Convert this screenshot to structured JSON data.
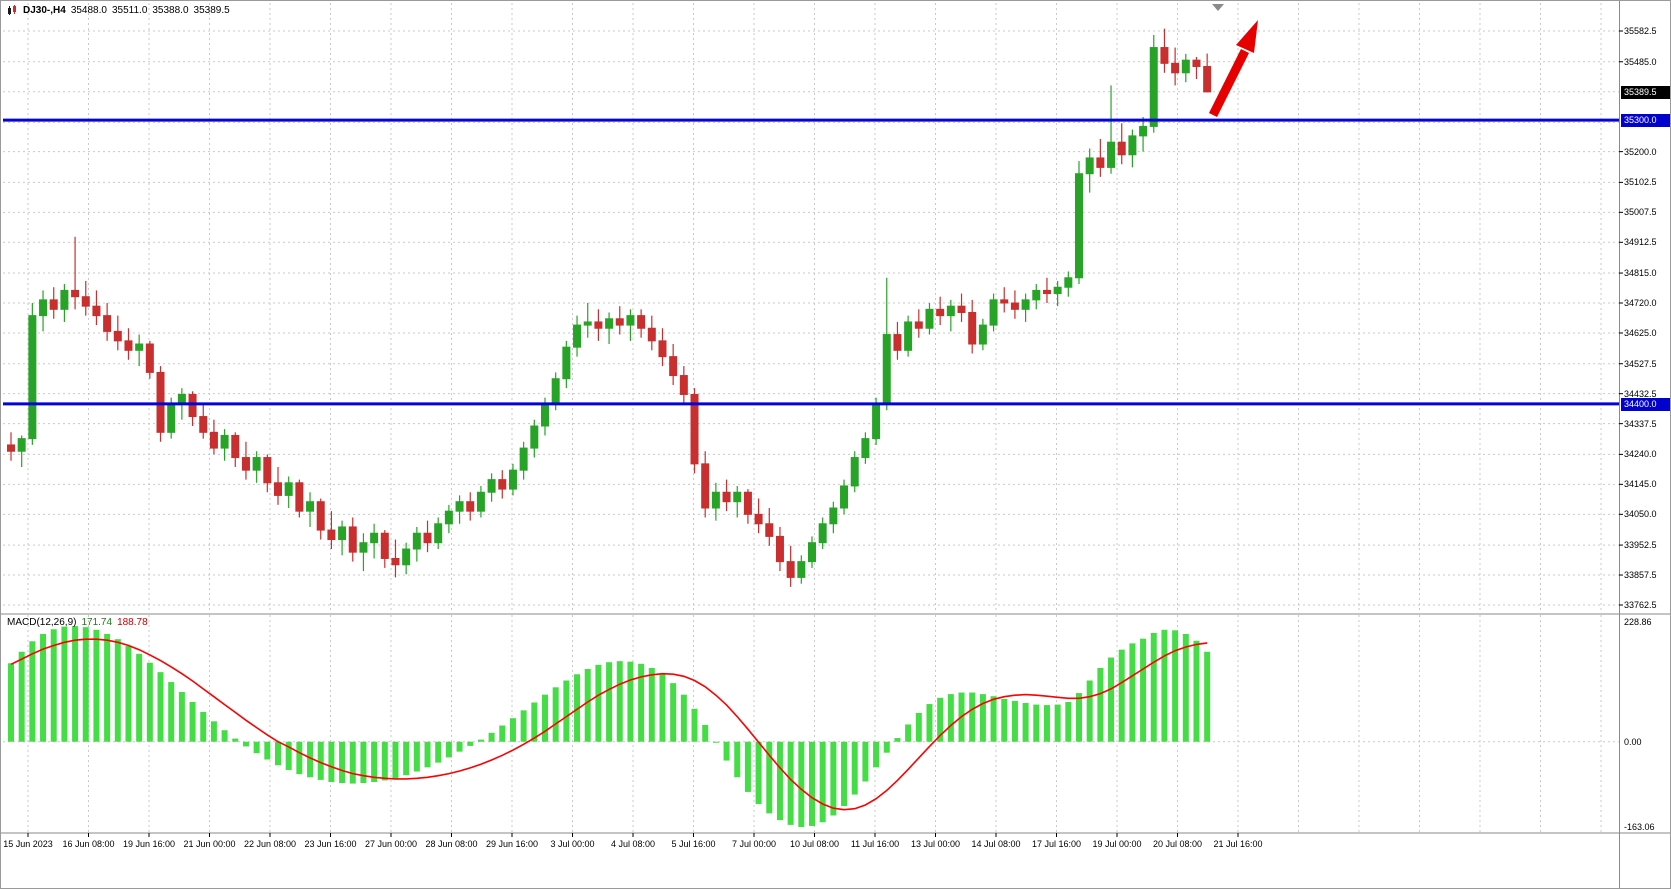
{
  "header": {
    "symbol_period": "DJ30-,H4",
    "open": "35488.0",
    "high": "35511.0",
    "low": "35388.0",
    "close": "35389.5"
  },
  "price_axis": {
    "labels": [
      {
        "price": 35582.5,
        "text": "35582.5"
      },
      {
        "price": 35485.0,
        "text": "35485.0"
      },
      {
        "price": 35200.0,
        "text": "35200.0"
      },
      {
        "price": 35102.5,
        "text": "35102.5"
      },
      {
        "price": 35007.5,
        "text": "35007.5"
      },
      {
        "price": 34912.5,
        "text": "34912.5"
      },
      {
        "price": 34815.0,
        "text": "34815.0"
      },
      {
        "price": 34720.0,
        "text": "34720.0"
      },
      {
        "price": 34625.0,
        "text": "34625.0"
      },
      {
        "price": 34527.5,
        "text": "34527.5"
      },
      {
        "price": 34432.5,
        "text": "34432.5"
      },
      {
        "price": 34337.5,
        "text": "34337.5"
      },
      {
        "price": 34240.0,
        "text": "34240.0"
      },
      {
        "price": 34145.0,
        "text": "34145.0"
      },
      {
        "price": 34050.0,
        "text": "34050.0"
      },
      {
        "price": 33952.5,
        "text": "33952.5"
      },
      {
        "price": 33857.5,
        "text": "33857.5"
      },
      {
        "price": 33762.5,
        "text": "33762.5"
      }
    ],
    "current_tag": {
      "price": 35389.5,
      "text": "35389.5",
      "bg": "#000000",
      "fg": "#ffffff"
    },
    "level_tags": [
      {
        "price": 35300.0,
        "text": "35300.0",
        "bg": "#0202cf",
        "fg": "#ffffff"
      },
      {
        "price": 34400.0,
        "text": "34400.0",
        "bg": "#0202cf",
        "fg": "#ffffff"
      }
    ]
  },
  "time_axis": {
    "labels": [
      "15 Jun 2023",
      "16 Jun 08:00",
      "19 Jun 16:00",
      "21 Jun 00:00",
      "22 Jun 08:00",
      "23 Jun 16:00",
      "27 Jun 00:00",
      "28 Jun 08:00",
      "29 Jun 16:00",
      "3 Jul 00:00",
      "4 Jul 08:00",
      "5 Jul 16:00",
      "7 Jul 00:00",
      "10 Jul 08:00",
      "11 Jul 16:00",
      "13 Jul 00:00",
      "14 Jul 08:00",
      "17 Jul 16:00",
      "19 Jul 00:00",
      "20 Jul 08:00",
      "21 Jul 16:00"
    ]
  },
  "macd_panel": {
    "label": "MACD(12,26,9)",
    "main_value": "171.74",
    "signal_value": "188.78",
    "scale_max": "228.86",
    "scale_zero": "0.00",
    "scale_min": "-163.06"
  },
  "colors": {
    "bull": "#27a427",
    "bear": "#c92f2f",
    "macd_hist": "#45dd45",
    "macd_signal": "#ff0000",
    "level_line": "#0404d8",
    "grid": "#c9c9c9",
    "axis_text": "#000000",
    "arrow": "#e60000",
    "background": "#ffffff"
  },
  "chart_data": {
    "type": "candlestick",
    "title": "DJ30-,H4",
    "symbol": "DJ30-",
    "timeframe": "H4",
    "ylim": [
      33762.5,
      35582.5
    ],
    "x_labels": [
      "15 Jun 2023",
      "16 Jun 08:00",
      "19 Jun 16:00",
      "21 Jun 00:00",
      "22 Jun 08:00",
      "23 Jun 16:00",
      "27 Jun 00:00",
      "28 Jun 08:00",
      "29 Jun 16:00",
      "3 Jul 00:00",
      "4 Jul 08:00",
      "5 Jul 16:00",
      "7 Jul 00:00",
      "10 Jul 08:00",
      "11 Jul 16:00",
      "13 Jul 00:00",
      "14 Jul 08:00",
      "17 Jul 16:00",
      "19 Jul 00:00",
      "20 Jul 08:00",
      "21 Jul 16:00"
    ],
    "price_gridlines": [
      35582.5,
      35485.0,
      35390.0,
      35292.5,
      35200.0,
      35102.5,
      35007.5,
      34912.5,
      34815.0,
      34720.0,
      34625.0,
      34527.5,
      34432.5,
      34337.5,
      34240.0,
      34145.0,
      34050.0,
      33952.5,
      33857.5,
      33762.5
    ],
    "horizontal_levels": [
      35300.0,
      34400.0
    ],
    "current_price": 35389.5,
    "candles": [
      [
        34270,
        34310,
        34220,
        34250
      ],
      [
        34250,
        34300,
        34200,
        34290
      ],
      [
        34290,
        34720,
        34270,
        34680
      ],
      [
        34680,
        34760,
        34630,
        34730
      ],
      [
        34730,
        34770,
        34670,
        34700
      ],
      [
        34700,
        34780,
        34660,
        34760
      ],
      [
        34760,
        34930,
        34700,
        34740
      ],
      [
        34740,
        34790,
        34680,
        34710
      ],
      [
        34710,
        34760,
        34650,
        34680
      ],
      [
        34680,
        34720,
        34600,
        34630
      ],
      [
        34630,
        34680,
        34570,
        34600
      ],
      [
        34600,
        34640,
        34540,
        34570
      ],
      [
        34570,
        34620,
        34520,
        34590
      ],
      [
        34590,
        34600,
        34480,
        34500
      ],
      [
        34500,
        34520,
        34280,
        34310
      ],
      [
        34310,
        34420,
        34290,
        34400
      ],
      [
        34400,
        34450,
        34350,
        34430
      ],
      [
        34430,
        34440,
        34330,
        34360
      ],
      [
        34360,
        34400,
        34290,
        34310
      ],
      [
        34310,
        34350,
        34240,
        34260
      ],
      [
        34260,
        34320,
        34220,
        34300
      ],
      [
        34300,
        34310,
        34200,
        34230
      ],
      [
        34230,
        34280,
        34160,
        34190
      ],
      [
        34190,
        34250,
        34150,
        34230
      ],
      [
        34230,
        34240,
        34120,
        34150
      ],
      [
        34150,
        34200,
        34080,
        34110
      ],
      [
        34110,
        34170,
        34070,
        34150
      ],
      [
        34150,
        34160,
        34040,
        34060
      ],
      [
        34060,
        34120,
        34010,
        34090
      ],
      [
        34090,
        34100,
        33970,
        34000
      ],
      [
        34000,
        34060,
        33940,
        33970
      ],
      [
        33970,
        34030,
        33920,
        34010
      ],
      [
        34010,
        34040,
        33900,
        33930
      ],
      [
        33930,
        33990,
        33870,
        33960
      ],
      [
        33960,
        34020,
        33910,
        33990
      ],
      [
        33990,
        34000,
        33880,
        33910
      ],
      [
        33910,
        33970,
        33850,
        33890
      ],
      [
        33890,
        33960,
        33860,
        33940
      ],
      [
        33940,
        34010,
        33900,
        33990
      ],
      [
        33990,
        34030,
        33930,
        33960
      ],
      [
        33960,
        34040,
        33940,
        34020
      ],
      [
        34020,
        34080,
        33990,
        34060
      ],
      [
        34060,
        34110,
        34020,
        34090
      ],
      [
        34090,
        34120,
        34030,
        34060
      ],
      [
        34060,
        34140,
        34040,
        34120
      ],
      [
        34120,
        34180,
        34090,
        34160
      ],
      [
        34160,
        34190,
        34100,
        34130
      ],
      [
        34130,
        34210,
        34110,
        34190
      ],
      [
        34190,
        34280,
        34160,
        34260
      ],
      [
        34260,
        34350,
        34230,
        34330
      ],
      [
        34330,
        34420,
        34300,
        34400
      ],
      [
        34400,
        34500,
        34380,
        34480
      ],
      [
        34480,
        34600,
        34450,
        34580
      ],
      [
        34580,
        34680,
        34550,
        34650
      ],
      [
        34650,
        34720,
        34610,
        34660
      ],
      [
        34660,
        34700,
        34600,
        34640
      ],
      [
        34640,
        34690,
        34590,
        34670
      ],
      [
        34670,
        34710,
        34620,
        34650
      ],
      [
        34650,
        34700,
        34600,
        34680
      ],
      [
        34680,
        34700,
        34610,
        34640
      ],
      [
        34640,
        34680,
        34570,
        34600
      ],
      [
        34600,
        34640,
        34520,
        34550
      ],
      [
        34550,
        34590,
        34460,
        34490
      ],
      [
        34490,
        34520,
        34400,
        34430
      ],
      [
        34430,
        34450,
        34180,
        34210
      ],
      [
        34210,
        34250,
        34040,
        34070
      ],
      [
        34070,
        34150,
        34030,
        34120
      ],
      [
        34120,
        34160,
        34060,
        34090
      ],
      [
        34090,
        34140,
        34040,
        34120
      ],
      [
        34120,
        34130,
        34020,
        34050
      ],
      [
        34050,
        34100,
        33990,
        34020
      ],
      [
        34020,
        34070,
        33950,
        33980
      ],
      [
        33980,
        34010,
        33870,
        33900
      ],
      [
        33900,
        33950,
        33820,
        33850
      ],
      [
        33850,
        33920,
        33830,
        33900
      ],
      [
        33900,
        33980,
        33880,
        33960
      ],
      [
        33960,
        34040,
        33940,
        34020
      ],
      [
        34020,
        34090,
        33990,
        34070
      ],
      [
        34070,
        34160,
        34050,
        34140
      ],
      [
        34140,
        34250,
        34120,
        34230
      ],
      [
        34230,
        34310,
        34210,
        34290
      ],
      [
        34290,
        34420,
        34270,
        34400
      ],
      [
        34400,
        34800,
        34380,
        34620
      ],
      [
        34620,
        34660,
        34540,
        34570
      ],
      [
        34570,
        34680,
        34550,
        34660
      ],
      [
        34660,
        34700,
        34610,
        34640
      ],
      [
        34640,
        34720,
        34620,
        34700
      ],
      [
        34700,
        34740,
        34650,
        34680
      ],
      [
        34680,
        34730,
        34630,
        34710
      ],
      [
        34710,
        34750,
        34660,
        34690
      ],
      [
        34690,
        34730,
        34560,
        34590
      ],
      [
        34590,
        34670,
        34570,
        34650
      ],
      [
        34650,
        34750,
        34630,
        34730
      ],
      [
        34730,
        34770,
        34690,
        34720
      ],
      [
        34720,
        34760,
        34670,
        34700
      ],
      [
        34700,
        34750,
        34660,
        34730
      ],
      [
        34730,
        34780,
        34700,
        34760
      ],
      [
        34760,
        34800,
        34720,
        34750
      ],
      [
        34750,
        34790,
        34710,
        34770
      ],
      [
        34770,
        34820,
        34740,
        34800
      ],
      [
        34800,
        35170,
        34780,
        35130
      ],
      [
        35130,
        35210,
        35070,
        35180
      ],
      [
        35180,
        35240,
        35120,
        35150
      ],
      [
        35150,
        35410,
        35130,
        35230
      ],
      [
        35230,
        35290,
        35160,
        35190
      ],
      [
        35190,
        35270,
        35150,
        35250
      ],
      [
        35250,
        35310,
        35200,
        35280
      ],
      [
        35280,
        35570,
        35260,
        35530
      ],
      [
        35530,
        35590,
        35450,
        35480
      ],
      [
        35480,
        35530,
        35410,
        35450
      ],
      [
        35450,
        35510,
        35420,
        35490
      ],
      [
        35490,
        35500,
        35430,
        35470
      ],
      [
        35470,
        35511,
        35388,
        35389.5
      ]
    ],
    "macd": {
      "params": "12,26,9",
      "last_main": 171.74,
      "last_signal": 188.78,
      "range": [
        -163.06,
        228.86
      ],
      "histogram": [
        150,
        172,
        192,
        206,
        215,
        220,
        221,
        219,
        214,
        206,
        196,
        183,
        168,
        151,
        133,
        114,
        95,
        76,
        57,
        39,
        22,
        6,
        -9,
        -22,
        -34,
        -45,
        -54,
        -62,
        -68,
        -73,
        -77,
        -79,
        -80,
        -79,
        -77,
        -74,
        -70,
        -64,
        -57,
        -49,
        -40,
        -30,
        -19,
        -8,
        4,
        17,
        31,
        45,
        60,
        75,
        90,
        104,
        117,
        129,
        139,
        147,
        152,
        154,
        153,
        149,
        141,
        129,
        112,
        90,
        63,
        32,
        -2,
        -36,
        -68,
        -96,
        -119,
        -137,
        -150,
        -159,
        -163,
        -161,
        -154,
        -141,
        -123,
        -101,
        -76,
        -49,
        -21,
        7,
        33,
        55,
        72,
        84,
        91,
        94,
        94,
        91,
        87,
        82,
        78,
        74,
        71,
        70,
        71,
        76,
        93,
        117,
        141,
        161,
        176,
        188,
        197,
        208,
        214,
        213,
        206,
        193,
        172
      ],
      "signal": [
        148,
        158,
        168,
        177,
        184,
        190,
        194,
        196,
        196,
        194,
        190,
        184,
        176,
        166,
        155,
        143,
        130,
        116,
        101,
        86,
        71,
        56,
        41,
        27,
        13,
        0,
        -10,
        -21,
        -31,
        -40,
        -48,
        -55,
        -61,
        -65,
        -68,
        -70,
        -71,
        -71,
        -70,
        -68,
        -65,
        -61,
        -56,
        -50,
        -43,
        -35,
        -26,
        -16,
        -5,
        7,
        20,
        34,
        48,
        62,
        76,
        89,
        100,
        110,
        118,
        124,
        128,
        130,
        129,
        125,
        117,
        105,
        89,
        70,
        48,
        24,
        -1,
        -26,
        -50,
        -72,
        -91,
        -107,
        -119,
        -127,
        -130,
        -128,
        -121,
        -109,
        -93,
        -74,
        -53,
        -31,
        -9,
        12,
        31,
        48,
        62,
        73,
        81,
        86,
        89,
        90,
        89,
        87,
        85,
        83,
        83,
        86,
        92,
        101,
        113,
        126,
        139,
        152,
        164,
        174,
        181,
        186,
        189
      ]
    },
    "annotations": [
      {
        "type": "arrow",
        "direction": "up-right",
        "color": "#e60000"
      }
    ]
  }
}
